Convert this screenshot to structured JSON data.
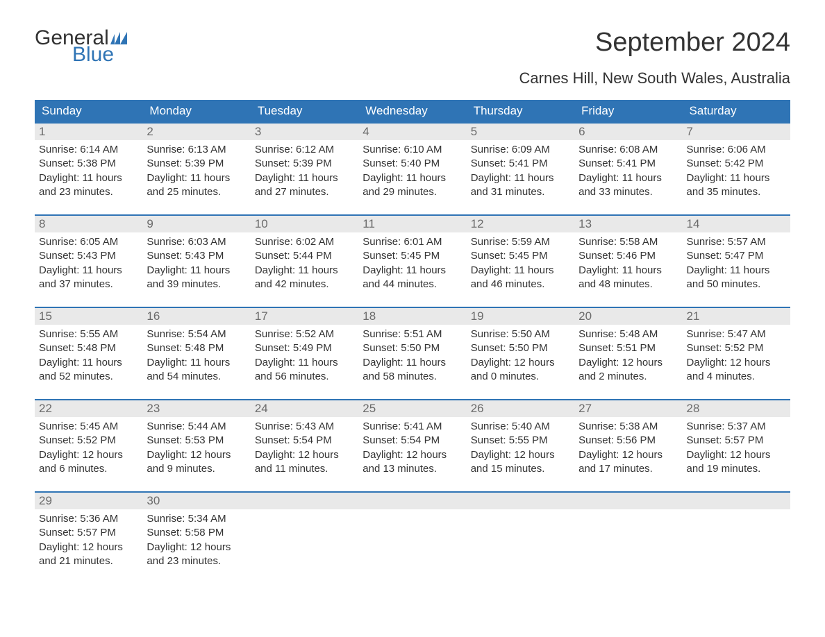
{
  "logo": {
    "text1": "General",
    "text2": "Blue",
    "flag_color": "#2f74b5"
  },
  "title": "September 2024",
  "location": "Carnes Hill, New South Wales, Australia",
  "colors": {
    "header_bg": "#2f74b5",
    "header_text": "#ffffff",
    "daynum_bg": "#e9e9e9",
    "daynum_text": "#6b6b6b",
    "body_text": "#333333",
    "row_border": "#2f74b5",
    "page_bg": "#ffffff"
  },
  "weekdays": [
    "Sunday",
    "Monday",
    "Tuesday",
    "Wednesday",
    "Thursday",
    "Friday",
    "Saturday"
  ],
  "weeks": [
    [
      {
        "day": "1",
        "sunrise": "6:14 AM",
        "sunset": "5:38 PM",
        "dl1": "11 hours",
        "dl2": "23 minutes."
      },
      {
        "day": "2",
        "sunrise": "6:13 AM",
        "sunset": "5:39 PM",
        "dl1": "11 hours",
        "dl2": "25 minutes."
      },
      {
        "day": "3",
        "sunrise": "6:12 AM",
        "sunset": "5:39 PM",
        "dl1": "11 hours",
        "dl2": "27 minutes."
      },
      {
        "day": "4",
        "sunrise": "6:10 AM",
        "sunset": "5:40 PM",
        "dl1": "11 hours",
        "dl2": "29 minutes."
      },
      {
        "day": "5",
        "sunrise": "6:09 AM",
        "sunset": "5:41 PM",
        "dl1": "11 hours",
        "dl2": "31 minutes."
      },
      {
        "day": "6",
        "sunrise": "6:08 AM",
        "sunset": "5:41 PM",
        "dl1": "11 hours",
        "dl2": "33 minutes."
      },
      {
        "day": "7",
        "sunrise": "6:06 AM",
        "sunset": "5:42 PM",
        "dl1": "11 hours",
        "dl2": "35 minutes."
      }
    ],
    [
      {
        "day": "8",
        "sunrise": "6:05 AM",
        "sunset": "5:43 PM",
        "dl1": "11 hours",
        "dl2": "37 minutes."
      },
      {
        "day": "9",
        "sunrise": "6:03 AM",
        "sunset": "5:43 PM",
        "dl1": "11 hours",
        "dl2": "39 minutes."
      },
      {
        "day": "10",
        "sunrise": "6:02 AM",
        "sunset": "5:44 PM",
        "dl1": "11 hours",
        "dl2": "42 minutes."
      },
      {
        "day": "11",
        "sunrise": "6:01 AM",
        "sunset": "5:45 PM",
        "dl1": "11 hours",
        "dl2": "44 minutes."
      },
      {
        "day": "12",
        "sunrise": "5:59 AM",
        "sunset": "5:45 PM",
        "dl1": "11 hours",
        "dl2": "46 minutes."
      },
      {
        "day": "13",
        "sunrise": "5:58 AM",
        "sunset": "5:46 PM",
        "dl1": "11 hours",
        "dl2": "48 minutes."
      },
      {
        "day": "14",
        "sunrise": "5:57 AM",
        "sunset": "5:47 PM",
        "dl1": "11 hours",
        "dl2": "50 minutes."
      }
    ],
    [
      {
        "day": "15",
        "sunrise": "5:55 AM",
        "sunset": "5:48 PM",
        "dl1": "11 hours",
        "dl2": "52 minutes."
      },
      {
        "day": "16",
        "sunrise": "5:54 AM",
        "sunset": "5:48 PM",
        "dl1": "11 hours",
        "dl2": "54 minutes."
      },
      {
        "day": "17",
        "sunrise": "5:52 AM",
        "sunset": "5:49 PM",
        "dl1": "11 hours",
        "dl2": "56 minutes."
      },
      {
        "day": "18",
        "sunrise": "5:51 AM",
        "sunset": "5:50 PM",
        "dl1": "11 hours",
        "dl2": "58 minutes."
      },
      {
        "day": "19",
        "sunrise": "5:50 AM",
        "sunset": "5:50 PM",
        "dl1": "12 hours",
        "dl2": "0 minutes."
      },
      {
        "day": "20",
        "sunrise": "5:48 AM",
        "sunset": "5:51 PM",
        "dl1": "12 hours",
        "dl2": "2 minutes."
      },
      {
        "day": "21",
        "sunrise": "5:47 AM",
        "sunset": "5:52 PM",
        "dl1": "12 hours",
        "dl2": "4 minutes."
      }
    ],
    [
      {
        "day": "22",
        "sunrise": "5:45 AM",
        "sunset": "5:52 PM",
        "dl1": "12 hours",
        "dl2": "6 minutes."
      },
      {
        "day": "23",
        "sunrise": "5:44 AM",
        "sunset": "5:53 PM",
        "dl1": "12 hours",
        "dl2": "9 minutes."
      },
      {
        "day": "24",
        "sunrise": "5:43 AM",
        "sunset": "5:54 PM",
        "dl1": "12 hours",
        "dl2": "11 minutes."
      },
      {
        "day": "25",
        "sunrise": "5:41 AM",
        "sunset": "5:54 PM",
        "dl1": "12 hours",
        "dl2": "13 minutes."
      },
      {
        "day": "26",
        "sunrise": "5:40 AM",
        "sunset": "5:55 PM",
        "dl1": "12 hours",
        "dl2": "15 minutes."
      },
      {
        "day": "27",
        "sunrise": "5:38 AM",
        "sunset": "5:56 PM",
        "dl1": "12 hours",
        "dl2": "17 minutes."
      },
      {
        "day": "28",
        "sunrise": "5:37 AM",
        "sunset": "5:57 PM",
        "dl1": "12 hours",
        "dl2": "19 minutes."
      }
    ],
    [
      {
        "day": "29",
        "sunrise": "5:36 AM",
        "sunset": "5:57 PM",
        "dl1": "12 hours",
        "dl2": "21 minutes."
      },
      {
        "day": "30",
        "sunrise": "5:34 AM",
        "sunset": "5:58 PM",
        "dl1": "12 hours",
        "dl2": "23 minutes."
      },
      null,
      null,
      null,
      null,
      null
    ]
  ],
  "labels": {
    "sunrise_prefix": "Sunrise: ",
    "sunset_prefix": "Sunset: ",
    "daylight_prefix": "Daylight: ",
    "and_word": "and "
  }
}
